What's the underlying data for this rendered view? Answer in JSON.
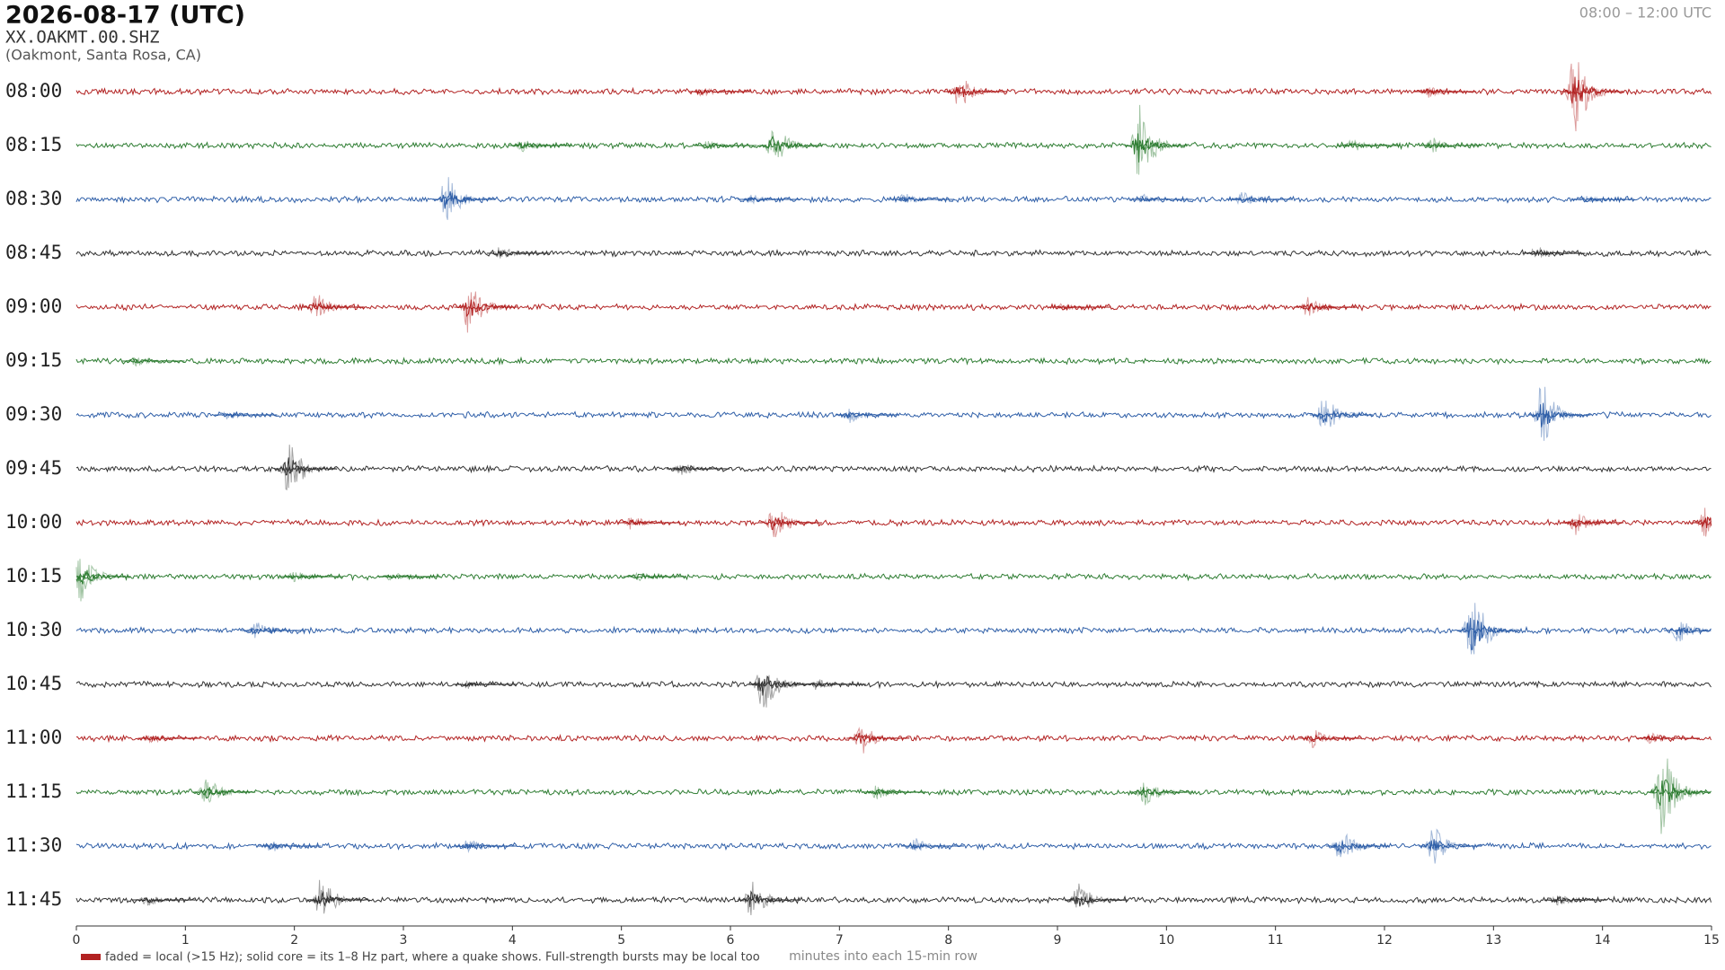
{
  "chart_data": {
    "type": "helicorder",
    "title": "2026-08-17  (UTC)",
    "station": "XX.OAKMT.00.SHZ",
    "location": "(Oakmont, Santa Rosa, CA)",
    "time_range": "08:00 – 12:00 UTC",
    "x_label": "minutes into each 15-min row",
    "legend": "faded = local (>15 Hz); solid core = its 1–8 Hz part, where a quake shows. Full-strength bursts may be local too",
    "legend_color": "#b22222",
    "xlim": [
      0,
      15
    ],
    "xticks": [
      0,
      1,
      2,
      3,
      4,
      5,
      6,
      7,
      8,
      9,
      10,
      11,
      12,
      13,
      14,
      15
    ],
    "rows": [
      {
        "label": "08:00",
        "color": "#b22222",
        "bursts": [
          {
            "minute": 5.75,
            "amplitude": 0.1
          },
          {
            "minute": 8.1,
            "amplitude": 0.35
          },
          {
            "minute": 12.4,
            "amplitude": 0.12
          },
          {
            "minute": 13.75,
            "amplitude": 0.85
          }
        ]
      },
      {
        "label": "08:15",
        "color": "#2e7d32",
        "bursts": [
          {
            "minute": 4.1,
            "amplitude": 0.15
          },
          {
            "minute": 5.8,
            "amplitude": 0.1
          },
          {
            "minute": 6.4,
            "amplitude": 0.45
          },
          {
            "minute": 9.75,
            "amplitude": 0.8
          },
          {
            "minute": 11.7,
            "amplitude": 0.15
          },
          {
            "minute": 12.45,
            "amplitude": 0.15
          }
        ]
      },
      {
        "label": "08:30",
        "color": "#2f5fa8",
        "bursts": [
          {
            "minute": 3.4,
            "amplitude": 0.5
          },
          {
            "minute": 6.2,
            "amplitude": 0.1
          },
          {
            "minute": 7.6,
            "amplitude": 0.12
          },
          {
            "minute": 9.8,
            "amplitude": 0.1
          },
          {
            "minute": 10.7,
            "amplitude": 0.15
          },
          {
            "minute": 13.85,
            "amplitude": 0.1
          }
        ]
      },
      {
        "label": "08:45",
        "color": "#333333",
        "bursts": [
          {
            "minute": 3.9,
            "amplitude": 0.15
          },
          {
            "minute": 13.4,
            "amplitude": 0.15
          }
        ]
      },
      {
        "label": "09:00",
        "color": "#b22222",
        "bursts": [
          {
            "minute": 2.2,
            "amplitude": 0.3
          },
          {
            "minute": 3.6,
            "amplitude": 0.55
          },
          {
            "minute": 9.05,
            "amplitude": 0.08
          },
          {
            "minute": 11.3,
            "amplitude": 0.2
          }
        ]
      },
      {
        "label": "09:15",
        "color": "#2e7d32",
        "bursts": [
          {
            "minute": 0.55,
            "amplitude": 0.1
          }
        ]
      },
      {
        "label": "09:30",
        "color": "#2f5fa8",
        "bursts": [
          {
            "minute": 1.4,
            "amplitude": 0.1
          },
          {
            "minute": 7.1,
            "amplitude": 0.15
          },
          {
            "minute": 11.45,
            "amplitude": 0.4
          },
          {
            "minute": 13.45,
            "amplitude": 0.65
          }
        ]
      },
      {
        "label": "09:45",
        "color": "#333333",
        "bursts": [
          {
            "minute": 1.95,
            "amplitude": 0.6
          },
          {
            "minute": 5.55,
            "amplitude": 0.15
          }
        ]
      },
      {
        "label": "10:00",
        "color": "#b22222",
        "bursts": [
          {
            "minute": 5.1,
            "amplitude": 0.15
          },
          {
            "minute": 6.4,
            "amplitude": 0.4
          },
          {
            "minute": 13.75,
            "amplitude": 0.25
          },
          {
            "minute": 14.95,
            "amplitude": 0.3
          }
        ]
      },
      {
        "label": "10:15",
        "color": "#2e7d32",
        "bursts": [
          {
            "minute": 0.05,
            "amplitude": 0.5
          },
          {
            "minute": 2.0,
            "amplitude": 0.12
          },
          {
            "minute": 2.9,
            "amplitude": 0.1
          },
          {
            "minute": 5.15,
            "amplitude": 0.1
          }
        ]
      },
      {
        "label": "10:30",
        "color": "#2f5fa8",
        "bursts": [
          {
            "minute": 1.65,
            "amplitude": 0.2
          },
          {
            "minute": 12.8,
            "amplitude": 0.95
          },
          {
            "minute": 14.7,
            "amplitude": 0.25
          }
        ]
      },
      {
        "label": "10:45",
        "color": "#333333",
        "bursts": [
          {
            "minute": 3.6,
            "amplitude": 0.1
          },
          {
            "minute": 6.3,
            "amplitude": 0.6
          },
          {
            "minute": 6.8,
            "amplitude": 0.12
          }
        ]
      },
      {
        "label": "11:00",
        "color": "#b22222",
        "bursts": [
          {
            "minute": 0.7,
            "amplitude": 0.1
          },
          {
            "minute": 7.2,
            "amplitude": 0.35
          },
          {
            "minute": 11.35,
            "amplitude": 0.2
          },
          {
            "minute": 14.45,
            "amplitude": 0.12
          }
        ]
      },
      {
        "label": "11:15",
        "color": "#2e7d32",
        "bursts": [
          {
            "minute": 1.2,
            "amplitude": 0.3
          },
          {
            "minute": 7.35,
            "amplitude": 0.15
          },
          {
            "minute": 9.8,
            "amplitude": 0.3
          },
          {
            "minute": 14.55,
            "amplitude": 0.95
          }
        ]
      },
      {
        "label": "11:30",
        "color": "#2f5fa8",
        "bursts": [
          {
            "minute": 1.8,
            "amplitude": 0.12
          },
          {
            "minute": 3.6,
            "amplitude": 0.15
          },
          {
            "minute": 7.7,
            "amplitude": 0.15
          },
          {
            "minute": 11.6,
            "amplitude": 0.35
          },
          {
            "minute": 12.45,
            "amplitude": 0.4
          }
        ]
      },
      {
        "label": "11:45",
        "color": "#333333",
        "bursts": [
          {
            "minute": 0.65,
            "amplitude": 0.12
          },
          {
            "minute": 2.25,
            "amplitude": 0.45
          },
          {
            "minute": 6.2,
            "amplitude": 0.4
          },
          {
            "minute": 9.2,
            "amplitude": 0.35
          },
          {
            "minute": 13.6,
            "amplitude": 0.15
          }
        ]
      }
    ]
  }
}
